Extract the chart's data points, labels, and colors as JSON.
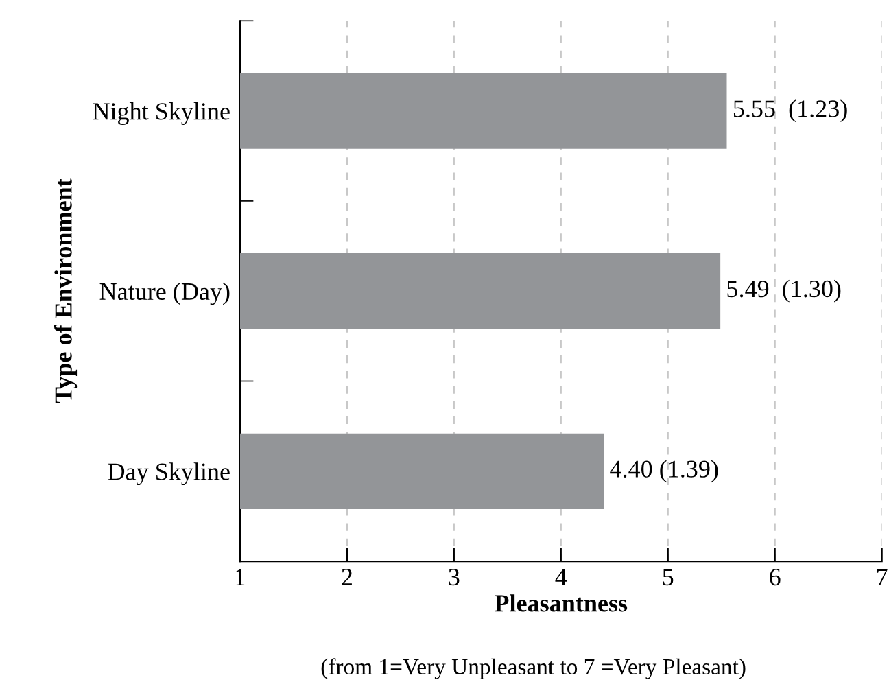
{
  "chart_data": {
    "type": "bar",
    "orientation": "horizontal",
    "categories": [
      "Night Skyline",
      "Nature (Day)",
      "Day Skyline"
    ],
    "values": [
      5.55,
      5.49,
      4.4
    ],
    "value_labels": [
      "5.55  (1.23)",
      "5.49  (1.30)",
      "4.40 (1.39)"
    ],
    "color": "#939598",
    "xlim": [
      1,
      7
    ],
    "xticks": [
      1,
      2,
      3,
      4,
      5,
      6,
      7
    ],
    "grid": "x",
    "xlabel": "Pleasantness",
    "ylabel": "Type of Environment",
    "annotations": [
      "(from 1=Very Unpleasant to 7 =Very Pleasant)"
    ]
  }
}
